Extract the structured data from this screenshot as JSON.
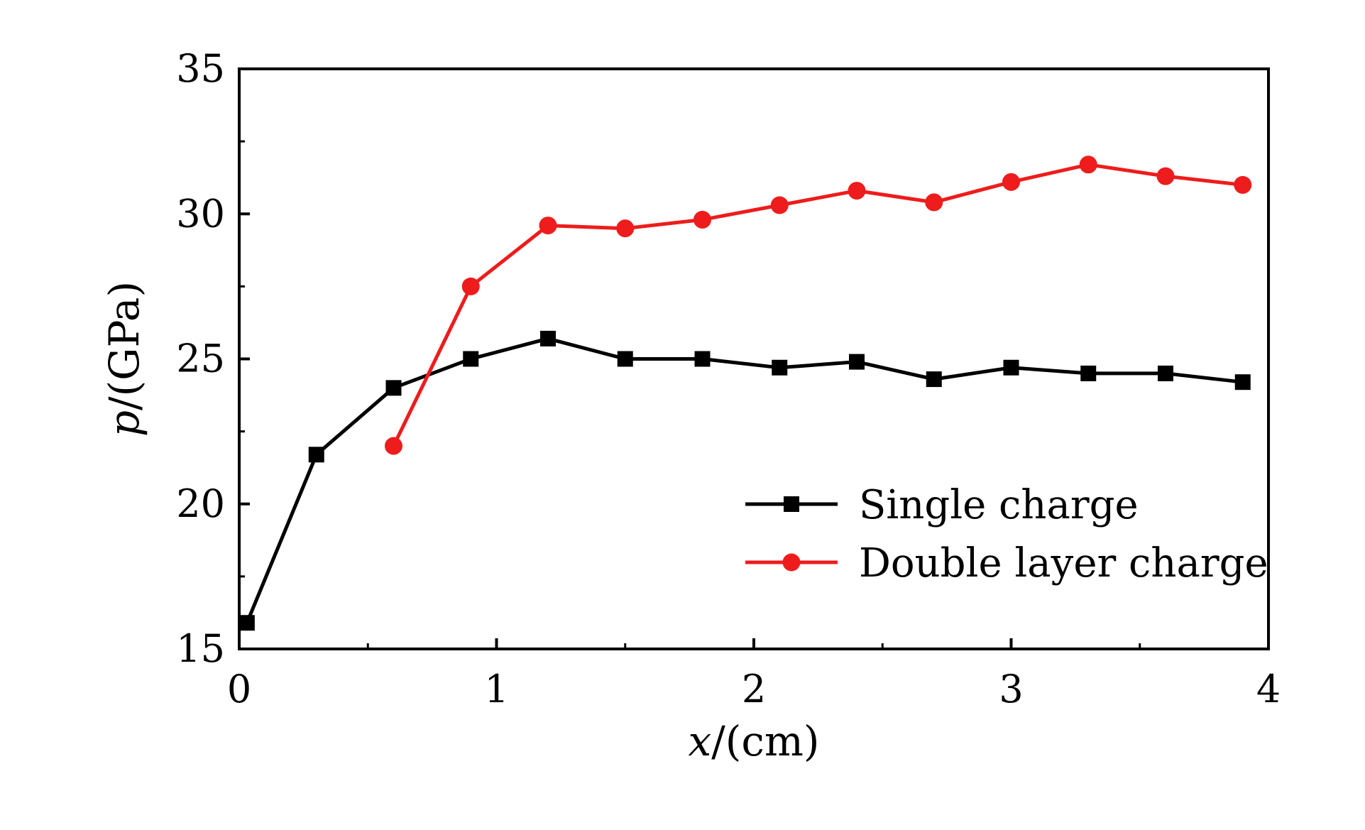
{
  "chart_data": {
    "type": "line",
    "title": "",
    "xlabel": {
      "var": "x",
      "unit": "/(cm)"
    },
    "ylabel": {
      "var": "p",
      "unit": "/(GPa)"
    },
    "xlim": [
      0,
      4
    ],
    "ylim": [
      15,
      35
    ],
    "x_ticks": [
      0,
      1,
      2,
      3,
      4
    ],
    "x_tick_labels": [
      "0",
      "1",
      "2",
      "3",
      "4"
    ],
    "x_minor_ticks": [
      0.5,
      1.5,
      2.5,
      3.5
    ],
    "y_ticks": [
      15,
      20,
      25,
      30,
      35
    ],
    "y_tick_labels": [
      "15",
      "20",
      "25",
      "30",
      "35"
    ],
    "y_minor_ticks": [
      17.5,
      22.5,
      27.5,
      32.5
    ],
    "grid": false,
    "legend_position": "bottom-right",
    "series": [
      {
        "name": "Single charge",
        "color": "#000000",
        "marker": "square",
        "x": [
          0.03,
          0.3,
          0.6,
          0.9,
          1.2,
          1.5,
          1.8,
          2.1,
          2.4,
          2.7,
          3.0,
          3.3,
          3.6,
          3.9
        ],
        "y": [
          15.9,
          21.7,
          24.0,
          25.0,
          25.7,
          25.0,
          25.0,
          24.7,
          24.9,
          24.3,
          24.7,
          24.5,
          24.5,
          24.2
        ]
      },
      {
        "name": "Double layer charge",
        "color": "#ee1c1c",
        "marker": "circle",
        "x": [
          0.6,
          0.9,
          1.2,
          1.5,
          1.8,
          2.1,
          2.4,
          2.7,
          3.0,
          3.3,
          3.6,
          3.9
        ],
        "y": [
          22.0,
          27.5,
          29.6,
          29.5,
          29.8,
          30.3,
          30.8,
          30.4,
          31.1,
          31.7,
          31.3,
          31.0
        ]
      }
    ]
  }
}
